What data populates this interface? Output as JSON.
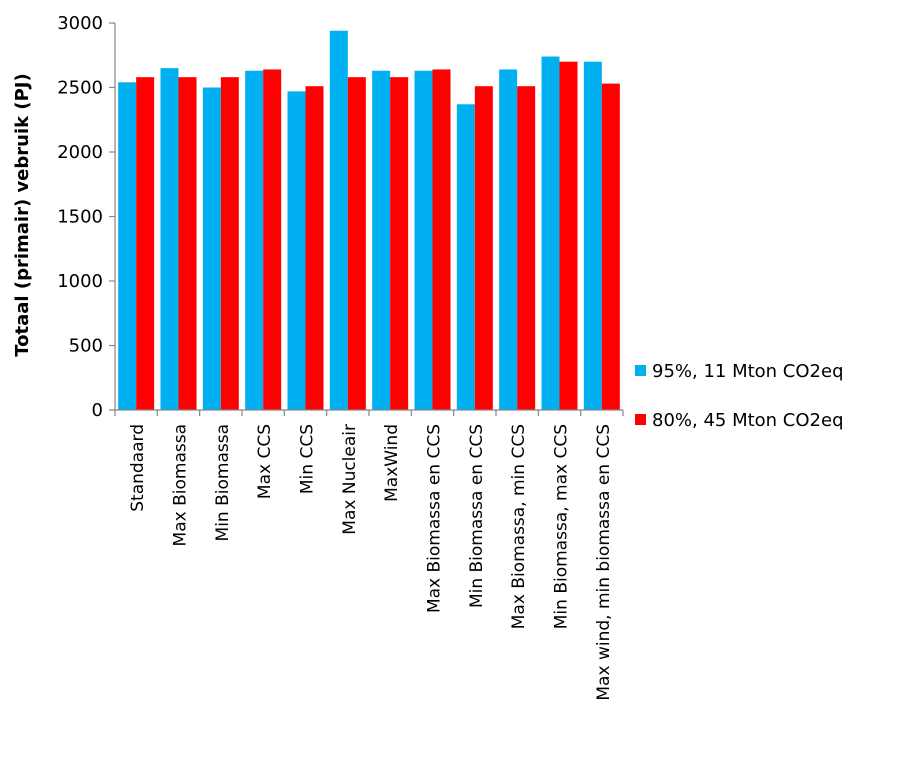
{
  "chart_data": {
    "type": "bar",
    "title": "",
    "xlabel": "",
    "ylabel": "Totaal (primair) vebruik (PJ)",
    "ylim": [
      0,
      3000
    ],
    "yticks": [
      0,
      500,
      1000,
      1500,
      2000,
      2500,
      3000
    ],
    "grid": false,
    "legend_position": "right",
    "categories": [
      "Standaard",
      "Max Biomassa",
      "Min Biomassa",
      "Max CCS",
      "Min CCS",
      "Max Nucleair",
      "MaxWind",
      "Max Biomassa en CCS",
      "Min Biomassa en CCS",
      "Max Biomassa, min CCS",
      "Min Biomassa, max CCS",
      "Max wind, min biomassa en CCS"
    ],
    "series": [
      {
        "name": "95%, 11 Mton CO2eq",
        "color": "#00b0f0",
        "values": [
          2540,
          2650,
          2500,
          2630,
          2470,
          2940,
          2630,
          2630,
          2370,
          2640,
          2740,
          2700
        ]
      },
      {
        "name": "80%, 45 Mton CO2eq",
        "color": "#ff0000",
        "values": [
          2580,
          2580,
          2580,
          2640,
          2510,
          2580,
          2580,
          2640,
          2510,
          2510,
          2700,
          2530
        ]
      }
    ]
  }
}
